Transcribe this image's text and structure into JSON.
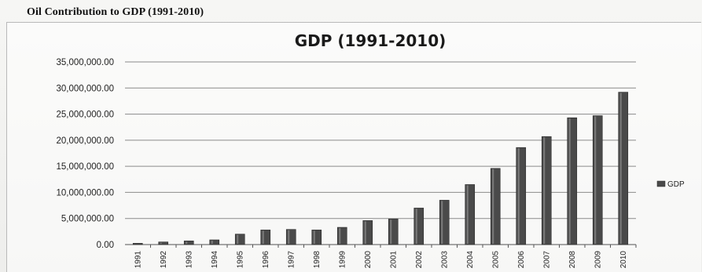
{
  "page": {
    "heading": "Oil Contribution to GDP (1991-2010)"
  },
  "chart_data": {
    "type": "bar",
    "title": "GDP (1991-2010)",
    "xlabel": "",
    "ylabel": "",
    "categories": [
      "1991",
      "1992",
      "1993",
      "1994",
      "1995",
      "1996",
      "1997",
      "1998",
      "1999",
      "2000",
      "2001",
      "2002",
      "2003",
      "2004",
      "2005",
      "2006",
      "2007",
      "2008",
      "2009",
      "2010"
    ],
    "series": [
      {
        "name": "GDP",
        "values": [
          250000,
          500000,
          700000,
          900000,
          2000000,
          2800000,
          2900000,
          2800000,
          3300000,
          4600000,
          4900000,
          7000000,
          8500000,
          11500000,
          14600000,
          18600000,
          20700000,
          24300000,
          24700000,
          29200000
        ]
      }
    ],
    "ylim": [
      0,
      35000000
    ],
    "yticks": [
      0,
      5000000,
      10000000,
      15000000,
      20000000,
      25000000,
      30000000,
      35000000
    ],
    "ytick_labels": [
      "0.00",
      "5,000,000.00",
      "10,000,000.00",
      "15,000,000.00",
      "20,000,000.00",
      "25,000,000.00",
      "30,000,000.00",
      "35,000,000.00"
    ],
    "grid": true,
    "legend": "right",
    "colors": {
      "bar": "#4a4a4a",
      "grid": "#8a8a8a"
    }
  }
}
